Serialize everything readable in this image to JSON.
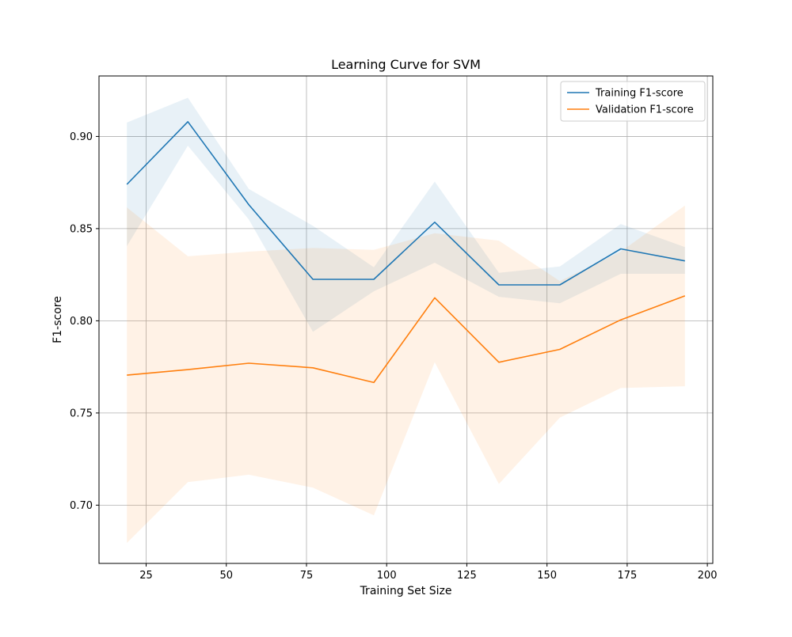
{
  "chart_data": {
    "type": "line",
    "title": "Learning Curve for SVM",
    "xlabel": "Training Set Size",
    "ylabel": "F1-score",
    "xlim": [
      10.3,
      201.7
    ],
    "ylim": [
      0.6684,
      0.9328
    ],
    "xticks": [
      25,
      50,
      75,
      100,
      125,
      150,
      175,
      200
    ],
    "xtick_labels": [
      "25",
      "50",
      "75",
      "100",
      "125",
      "150",
      "175",
      "200"
    ],
    "yticks": [
      0.7,
      0.75,
      0.8,
      0.85,
      0.9
    ],
    "ytick_labels": [
      "0.70",
      "0.75",
      "0.80",
      "0.85",
      "0.90"
    ],
    "grid": true,
    "legend_position": "top-right",
    "x": [
      19,
      38,
      57,
      77,
      96,
      115,
      135,
      154,
      173,
      193
    ],
    "series": [
      {
        "name": "Training F1-score",
        "color": "#1f77b4",
        "band_color": "#1f77b4",
        "band_opacity": 0.1,
        "values": [
          0.874,
          0.908,
          0.863,
          0.8225,
          0.8225,
          0.8535,
          0.8195,
          0.8195,
          0.839,
          0.8325
        ],
        "upper": [
          0.9075,
          0.921,
          0.8715,
          0.8515,
          0.829,
          0.8755,
          0.826,
          0.8295,
          0.8525,
          0.84
        ],
        "lower": [
          0.8405,
          0.895,
          0.855,
          0.794,
          0.816,
          0.8315,
          0.813,
          0.8095,
          0.8255,
          0.8255
        ]
      },
      {
        "name": "Validation F1-score",
        "color": "#ff7f0e",
        "band_color": "#ff7f0e",
        "band_opacity": 0.1,
        "values": [
          0.7705,
          0.7735,
          0.777,
          0.7745,
          0.7665,
          0.8125,
          0.7775,
          0.7845,
          0.8005,
          0.8135
        ],
        "upper": [
          0.8615,
          0.835,
          0.8375,
          0.8395,
          0.8385,
          0.8475,
          0.8435,
          0.8215,
          0.8375,
          0.8625
        ],
        "lower": [
          0.6795,
          0.7125,
          0.7165,
          0.7095,
          0.6945,
          0.7775,
          0.7115,
          0.7475,
          0.7635,
          0.7645
        ]
      }
    ]
  }
}
